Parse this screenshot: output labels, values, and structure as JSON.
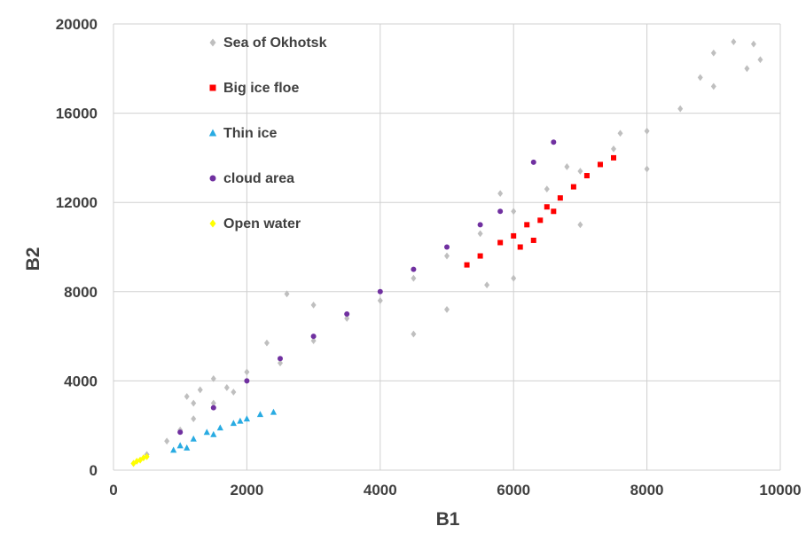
{
  "chart_data": {
    "type": "scatter",
    "xlabel": "B1",
    "ylabel": "B2",
    "xlim": [
      0,
      10000
    ],
    "ylim": [
      0,
      20000
    ],
    "x_ticks": [
      0,
      2000,
      4000,
      6000,
      8000,
      10000
    ],
    "y_ticks": [
      0,
      4000,
      8000,
      12000,
      16000,
      20000
    ],
    "x_tick_labels": [
      "0",
      "2000",
      "4000",
      "6000",
      "8000",
      "10000"
    ],
    "y_tick_labels": [
      "0",
      "4000",
      "8000",
      "12000",
      "16000",
      "20000"
    ],
    "grid": true,
    "legend_position": "top-left",
    "series": [
      {
        "name": "Sea of Okhotsk",
        "color": "#bfbfbf",
        "marker": "diamond",
        "points": [
          [
            300,
            300
          ],
          [
            500,
            700
          ],
          [
            800,
            1300
          ],
          [
            1000,
            1800
          ],
          [
            1200,
            2300
          ],
          [
            1500,
            3000
          ],
          [
            1800,
            3500
          ],
          [
            2000,
            4000
          ],
          [
            2500,
            4800
          ],
          [
            3000,
            5800
          ],
          [
            3500,
            6800
          ],
          [
            4000,
            7600
          ],
          [
            4500,
            8600
          ],
          [
            5000,
            9600
          ],
          [
            5500,
            10600
          ],
          [
            6000,
            11600
          ],
          [
            6500,
            12600
          ],
          [
            7000,
            13400
          ],
          [
            7500,
            14400
          ],
          [
            8000,
            15200
          ],
          [
            8500,
            16200
          ],
          [
            9000,
            17200
          ],
          [
            9500,
            18000
          ],
          [
            9700,
            18400
          ],
          [
            1100,
            3300
          ],
          [
            1300,
            3600
          ],
          [
            1500,
            4100
          ],
          [
            1700,
            3700
          ],
          [
            2000,
            4400
          ],
          [
            1200,
            3000
          ],
          [
            2300,
            5700
          ],
          [
            2600,
            7900
          ],
          [
            3000,
            7400
          ],
          [
            4500,
            6100
          ],
          [
            5000,
            7200
          ],
          [
            5600,
            8300
          ],
          [
            6000,
            8600
          ],
          [
            7000,
            11000
          ],
          [
            8000,
            13500
          ],
          [
            9000,
            18700
          ],
          [
            9300,
            19200
          ],
          [
            9600,
            19100
          ],
          [
            8800,
            17600
          ],
          [
            7600,
            15100
          ],
          [
            6800,
            13600
          ],
          [
            5800,
            12400
          ]
        ]
      },
      {
        "name": "Big ice floe",
        "color": "#ff0000",
        "marker": "square",
        "points": [
          [
            5300,
            9200
          ],
          [
            5500,
            9600
          ],
          [
            5800,
            10200
          ],
          [
            6000,
            10500
          ],
          [
            6200,
            11000
          ],
          [
            6400,
            11200
          ],
          [
            6500,
            11800
          ],
          [
            6700,
            12200
          ],
          [
            6900,
            12700
          ],
          [
            7100,
            13200
          ],
          [
            7300,
            13700
          ],
          [
            7500,
            14000
          ],
          [
            6300,
            10300
          ],
          [
            6600,
            11600
          ],
          [
            6100,
            10000
          ]
        ]
      },
      {
        "name": "Thin ice",
        "color": "#29abe2",
        "marker": "triangle",
        "points": [
          [
            900,
            900
          ],
          [
            1000,
            1100
          ],
          [
            1200,
            1400
          ],
          [
            1400,
            1700
          ],
          [
            1600,
            1900
          ],
          [
            1800,
            2100
          ],
          [
            2000,
            2300
          ],
          [
            2200,
            2500
          ],
          [
            2400,
            2600
          ],
          [
            1100,
            1000
          ],
          [
            1500,
            1600
          ],
          [
            1900,
            2200
          ]
        ]
      },
      {
        "name": "cloud area",
        "color": "#7030a0",
        "marker": "circle",
        "points": [
          [
            1000,
            1700
          ],
          [
            1500,
            2800
          ],
          [
            2000,
            4000
          ],
          [
            2500,
            5000
          ],
          [
            3000,
            6000
          ],
          [
            3500,
            7000
          ],
          [
            4000,
            8000
          ],
          [
            4500,
            9000
          ],
          [
            5000,
            10000
          ],
          [
            5500,
            11000
          ],
          [
            5800,
            11600
          ],
          [
            6300,
            13800
          ],
          [
            6600,
            14700
          ]
        ]
      },
      {
        "name": "Open water",
        "color": "#ffff00",
        "marker": "diamond",
        "points": [
          [
            300,
            300
          ],
          [
            350,
            400
          ],
          [
            400,
            450
          ],
          [
            450,
            550
          ],
          [
            500,
            600
          ]
        ]
      }
    ]
  }
}
